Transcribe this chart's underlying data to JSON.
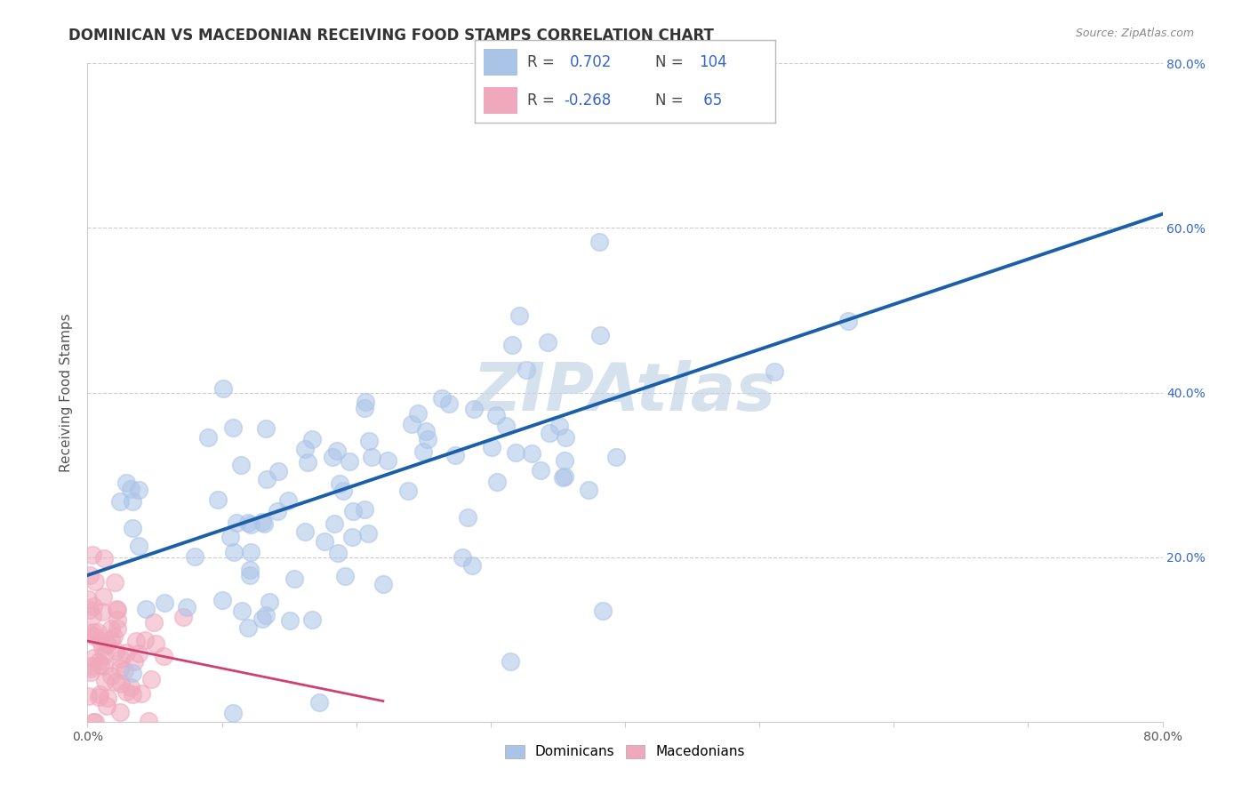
{
  "title": "DOMINICAN VS MACEDONIAN RECEIVING FOOD STAMPS CORRELATION CHART",
  "source_text": "Source: ZipAtlas.com",
  "ylabel": "Receiving Food Stamps",
  "xlabel": "",
  "watermark": "ZIPAtlas",
  "dominican_R": 0.702,
  "dominican_N": 104,
  "macedonian_R": -0.268,
  "macedonian_N": 65,
  "xlim": [
    0.0,
    0.8
  ],
  "ylim": [
    0.0,
    0.8
  ],
  "x_ticks": [
    0.0,
    0.1,
    0.2,
    0.3,
    0.4,
    0.5,
    0.6,
    0.7,
    0.8
  ],
  "y_ticks": [
    0.0,
    0.2,
    0.4,
    0.6,
    0.8
  ],
  "x_tick_labels_sparse": [
    "0.0%",
    "",
    "",
    "",
    "",
    "",
    "",
    "",
    "80.0%"
  ],
  "y_tick_labels_right": [
    "20.0%",
    "40.0%",
    "60.0%",
    "80.0%"
  ],
  "dominican_color": "#aac4e8",
  "dominican_color_fill": "#aac4e8",
  "dominican_color_line": "#1a5fa8",
  "macedonian_color": "#f0a8bc",
  "macedonian_color_fill": "#f0a8bc",
  "macedonian_color_line": "#d04070",
  "background_color": "#ffffff",
  "grid_color": "#cccccc",
  "title_fontsize": 12,
  "axis_label_fontsize": 11,
  "tick_fontsize": 10,
  "watermark_color": "#c5d5e8",
  "legend_r_color": "#3366cc",
  "legend_n_color": "#3366cc",
  "dom_line_x0": 0.0,
  "dom_line_y0": 0.178,
  "dom_line_x1": 0.8,
  "dom_line_y1": 0.617,
  "mac_line_x0": 0.0,
  "mac_line_y0": 0.098,
  "mac_line_x1": 0.22,
  "mac_line_y1": 0.025
}
